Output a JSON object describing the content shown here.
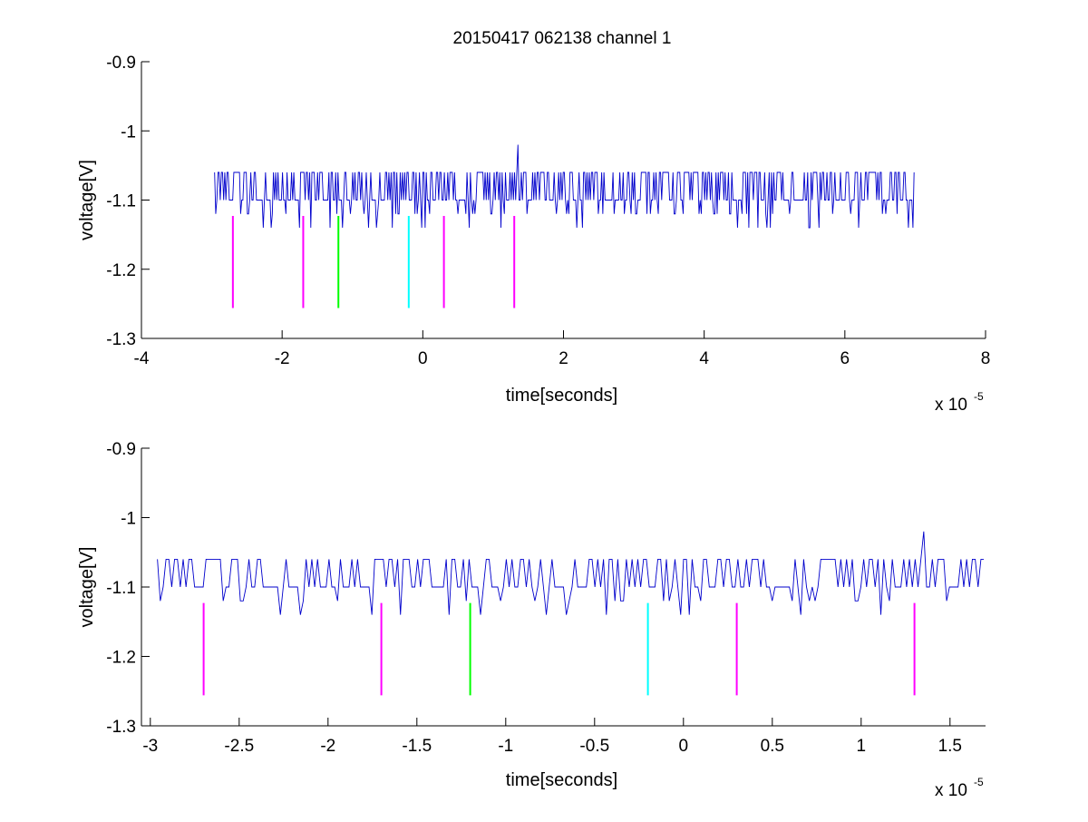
{
  "figure_title": "20150417 062138 channel 1",
  "colors": {
    "signal": "#0000cc",
    "axis": "#000000",
    "background": "#ffffff"
  },
  "chart_data": [
    {
      "type": "line",
      "title": "",
      "xlabel": "time[seconds]",
      "ylabel": "voltage[V]",
      "xlim": [
        -4,
        8
      ],
      "ylim": [
        -1.3,
        -0.9
      ],
      "y_reversed": true,
      "xticks": [
        -4,
        -2,
        0,
        2,
        4,
        6,
        8
      ],
      "yticks": [
        -0.9,
        -1,
        -1.1,
        -1.2,
        -1.3
      ],
      "xtick_labels": [
        "-4",
        "-2",
        "0",
        "2",
        "4",
        "6",
        "8"
      ],
      "ytick_labels": [
        "-0.9",
        "-1",
        "-1.1",
        "-1.2",
        "-1.3"
      ],
      "x_multiplier": {
        "base": "x 10",
        "exponent": "-5"
      },
      "grid": false,
      "series": [
        {
          "color": "#0000cc",
          "x_range": [
            -2.96,
            7.0
          ],
          "baseline": -1.1,
          "levels": [
            -1.1,
            -1.06,
            -1.12,
            -1.14
          ],
          "spike": {
            "x": 1.35,
            "y": -1.02
          }
        }
      ],
      "markers": [
        {
          "x": -2.7,
          "y0": -1.123,
          "y1": -1.256,
          "color": "#ff00ff"
        },
        {
          "x": -1.7,
          "y0": -1.123,
          "y1": -1.256,
          "color": "#ff00ff"
        },
        {
          "x": -1.2,
          "y0": -1.123,
          "y1": -1.256,
          "color": "#00ff00"
        },
        {
          "x": -0.2,
          "y0": -1.123,
          "y1": -1.256,
          "color": "#00ffff"
        },
        {
          "x": 0.3,
          "y0": -1.123,
          "y1": -1.256,
          "color": "#ff00ff"
        },
        {
          "x": 1.3,
          "y0": -1.123,
          "y1": -1.256,
          "color": "#ff00ff"
        }
      ]
    },
    {
      "type": "line",
      "title": "",
      "xlabel": "time[seconds]",
      "ylabel": "voltage[V]",
      "xlim": [
        -3.05,
        1.7
      ],
      "ylim": [
        -1.3,
        -0.9
      ],
      "y_reversed": true,
      "xticks": [
        -3,
        -2.5,
        -2,
        -1.5,
        -1,
        -0.5,
        0,
        0.5,
        1,
        1.5
      ],
      "yticks": [
        -0.9,
        -1,
        -1.1,
        -1.2,
        -1.3
      ],
      "xtick_labels": [
        "-3",
        "-2.5",
        "-2",
        "-1.5",
        "-1",
        "-0.5",
        "0",
        "0.5",
        "1",
        "1.5"
      ],
      "ytick_labels": [
        "-0.9",
        "-1",
        "-1.1",
        "-1.2",
        "-1.3"
      ],
      "x_multiplier": {
        "base": "x 10",
        "exponent": "-5"
      },
      "grid": false,
      "series": [
        {
          "color": "#0000cc",
          "x_range": [
            -2.96,
            1.7
          ],
          "baseline": -1.1,
          "levels": [
            -1.1,
            -1.06,
            -1.12,
            -1.14
          ],
          "spike": {
            "x": 1.35,
            "y": -1.02
          }
        }
      ],
      "markers": [
        {
          "x": -2.7,
          "y0": -1.123,
          "y1": -1.256,
          "color": "#ff00ff"
        },
        {
          "x": -1.7,
          "y0": -1.123,
          "y1": -1.256,
          "color": "#ff00ff"
        },
        {
          "x": -1.2,
          "y0": -1.123,
          "y1": -1.256,
          "color": "#00ff00"
        },
        {
          "x": -0.2,
          "y0": -1.123,
          "y1": -1.256,
          "color": "#00ffff"
        },
        {
          "x": 0.3,
          "y0": -1.123,
          "y1": -1.256,
          "color": "#ff00ff"
        },
        {
          "x": 1.3,
          "y0": -1.123,
          "y1": -1.256,
          "color": "#ff00ff"
        }
      ]
    }
  ]
}
